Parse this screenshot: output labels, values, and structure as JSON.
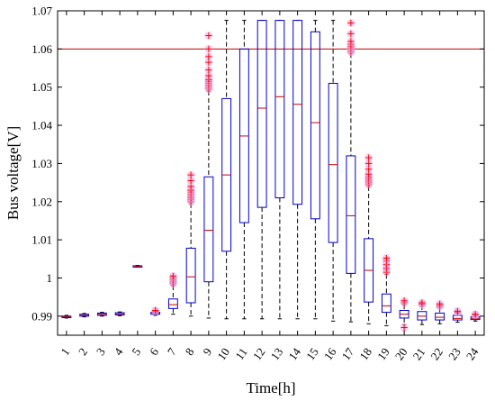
{
  "chart_data": {
    "type": "box",
    "title": "",
    "xlabel": "Time[h]",
    "ylabel": "Bus voltage[V]",
    "ylim": [
      0.985,
      1.07
    ],
    "yticks": [
      0.99,
      1,
      1.01,
      1.02,
      1.03,
      1.04,
      1.05,
      1.06,
      1.07
    ],
    "ytick_labels": [
      "0.99",
      "1",
      "1.01",
      "1.02",
      "1.03",
      "1.04",
      "1.05",
      "1.06",
      "1.07"
    ],
    "categories": [
      "1",
      "2",
      "3",
      "4",
      "5",
      "6",
      "7",
      "8",
      "9",
      "10",
      "11",
      "12",
      "13",
      "14",
      "15",
      "16",
      "17",
      "18",
      "19",
      "20",
      "21",
      "22",
      "23",
      "24"
    ],
    "reference_line": {
      "y": 1.06,
      "color": "#c00000"
    },
    "colors": {
      "box": "#0000cc",
      "median": "#cc0000",
      "whisker": "#000000",
      "outlier": "#ff0000",
      "outlier_glow": "#e9a8e6"
    },
    "boxes": [
      {
        "x": "1",
        "q1": 0.9896,
        "median": 0.9898,
        "q3": 0.99,
        "whisker_low": 0.9895,
        "whisker_high": 0.9902,
        "outliers": []
      },
      {
        "x": "2",
        "q1": 0.99,
        "median": 0.9902,
        "q3": 0.9905,
        "whisker_low": 0.9898,
        "whisker_high": 0.9907,
        "outliers": []
      },
      {
        "x": "3",
        "q1": 0.9902,
        "median": 0.9905,
        "q3": 0.9908,
        "whisker_low": 0.99,
        "whisker_high": 0.991,
        "outliers": []
      },
      {
        "x": "4",
        "q1": 0.9903,
        "median": 0.9906,
        "q3": 0.9909,
        "whisker_low": 0.9901,
        "whisker_high": 0.9911,
        "outliers": []
      },
      {
        "x": "5",
        "q1": 1.003,
        "median": 1.0031,
        "q3": 1.0032,
        "whisker_low": 1.0029,
        "whisker_high": 1.0033,
        "outliers": []
      },
      {
        "x": "6",
        "q1": 0.9905,
        "median": 0.9907,
        "q3": 0.991,
        "whisker_low": 0.9902,
        "whisker_high": 0.9912,
        "outliers": [
          0.9913,
          0.9915
        ]
      },
      {
        "x": "7",
        "q1": 0.992,
        "median": 0.993,
        "q3": 0.9945,
        "whisker_low": 0.9905,
        "whisker_high": 0.998,
        "outliers": [
          0.9985,
          0.999,
          0.9995,
          1.0,
          1.0005
        ]
      },
      {
        "x": "8",
        "q1": 0.9935,
        "median": 1.0003,
        "q3": 1.0078,
        "whisker_low": 0.99,
        "whisker_high": 1.0195,
        "outliers": [
          1.02,
          1.0205,
          1.021,
          1.0215,
          1.022,
          1.0225,
          1.023,
          1.024,
          1.0255,
          1.027
        ]
      },
      {
        "x": "9",
        "q1": 0.999,
        "median": 1.0125,
        "q3": 1.0265,
        "whisker_low": 0.9895,
        "whisker_high": 1.049,
        "outliers": [
          1.0495,
          1.05,
          1.0505,
          1.051,
          1.0515,
          1.052,
          1.053,
          1.0545,
          1.0565,
          1.058,
          1.06,
          1.0635
        ]
      },
      {
        "x": "10",
        "q1": 1.007,
        "median": 1.027,
        "q3": 1.047,
        "whisker_low": 0.9893,
        "whisker_high": 1.0675,
        "outliers": []
      },
      {
        "x": "11",
        "q1": 1.0145,
        "median": 1.0372,
        "q3": 1.06,
        "whisker_low": 0.9893,
        "whisker_high": 1.0675,
        "outliers": []
      },
      {
        "x": "12",
        "q1": 1.0185,
        "median": 1.0445,
        "q3": 1.0675,
        "whisker_low": 0.9893,
        "whisker_high": 1.0675,
        "outliers": []
      },
      {
        "x": "13",
        "q1": 1.021,
        "median": 1.0475,
        "q3": 1.0675,
        "whisker_low": 0.9893,
        "whisker_high": 1.0675,
        "outliers": []
      },
      {
        "x": "14",
        "q1": 1.0193,
        "median": 1.0455,
        "q3": 1.0675,
        "whisker_low": 0.9893,
        "whisker_high": 1.0675,
        "outliers": []
      },
      {
        "x": "15",
        "q1": 1.0155,
        "median": 1.0407,
        "q3": 1.0645,
        "whisker_low": 0.9893,
        "whisker_high": 1.0675,
        "outliers": []
      },
      {
        "x": "16",
        "q1": 1.0093,
        "median": 1.0297,
        "q3": 1.051,
        "whisker_low": 0.9887,
        "whisker_high": 1.0675,
        "outliers": []
      },
      {
        "x": "17",
        "q1": 1.0012,
        "median": 1.0163,
        "q3": 1.032,
        "whisker_low": 0.9885,
        "whisker_high": 1.0588,
        "outliers": [
          1.0592,
          1.0596,
          1.06,
          1.0603,
          1.0607,
          1.0612,
          1.062,
          1.064,
          1.0668
        ]
      },
      {
        "x": "18",
        "q1": 0.9937,
        "median": 1.002,
        "q3": 1.0103,
        "whisker_low": 0.988,
        "whisker_high": 1.024,
        "outliers": [
          1.0245,
          1.025,
          1.0255,
          1.026,
          1.0265,
          1.0272,
          1.0285,
          1.03,
          1.0315
        ]
      },
      {
        "x": "19",
        "q1": 0.991,
        "median": 0.9927,
        "q3": 0.9958,
        "whisker_low": 0.9875,
        "whisker_high": 1.001,
        "outliers": [
          1.0015,
          1.0025,
          1.0035,
          1.0045,
          1.0052
        ]
      },
      {
        "x": "20",
        "q1": 0.9895,
        "median": 0.9905,
        "q3": 0.9915,
        "whisker_low": 0.9878,
        "whisker_high": 0.993,
        "outliers": [
          0.9935,
          0.994,
          0.987
        ]
      },
      {
        "x": "21",
        "q1": 0.989,
        "median": 0.99,
        "q3": 0.9912,
        "whisker_low": 0.9878,
        "whisker_high": 0.9928,
        "outliers": [
          0.993,
          0.9932,
          0.9935
        ]
      },
      {
        "x": "22",
        "q1": 0.989,
        "median": 0.9897,
        "q3": 0.9908,
        "whisker_low": 0.988,
        "whisker_high": 0.9922,
        "outliers": [
          0.9925,
          0.9928,
          0.9932
        ]
      },
      {
        "x": "23",
        "q1": 0.989,
        "median": 0.9894,
        "q3": 0.9902,
        "whisker_low": 0.9884,
        "whisker_high": 0.9908,
        "outliers": [
          0.991,
          0.9913
        ]
      },
      {
        "x": "24",
        "q1": 0.9891,
        "median": 0.9894,
        "q3": 0.9898,
        "whisker_low": 0.9887,
        "whisker_high": 0.9902,
        "outliers": [
          0.9903,
          0.9905
        ]
      }
    ]
  }
}
